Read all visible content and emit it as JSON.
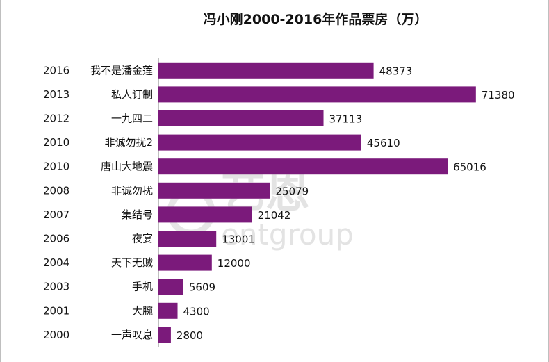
{
  "chart_data": {
    "type": "bar",
    "orientation": "horizontal",
    "title": "冯小刚2000-2016年作品票房（万）",
    "xlabel": "",
    "ylabel": "",
    "xlim": [
      0,
      75000
    ],
    "grid": false,
    "legend": "none",
    "bar_color": "#7b1a7b",
    "years": [
      "2016",
      "2013",
      "2012",
      "2010",
      "2010",
      "2008",
      "2007",
      "2006",
      "2004",
      "2003",
      "2001",
      "2000"
    ],
    "categories": [
      "我不是潘金莲",
      "私人订制",
      "一九四二",
      "非诚勿扰2",
      "唐山大地震",
      "非诚勿扰",
      "集结号",
      "夜宴",
      "天下无贼",
      "手机",
      "大腕",
      "一声叹息"
    ],
    "values": [
      48373,
      71380,
      37113,
      45610,
      65016,
      25079,
      21042,
      13001,
      12000,
      5609,
      4300,
      2800
    ],
    "value_labels": [
      "48373",
      "71380",
      "37113",
      "45610",
      "65016",
      "25079",
      "21042",
      "13001",
      "12000",
      "5609",
      "4300",
      "2800"
    ]
  },
  "watermark": {
    "cn": "艺恩",
    "en": "entgroup"
  }
}
